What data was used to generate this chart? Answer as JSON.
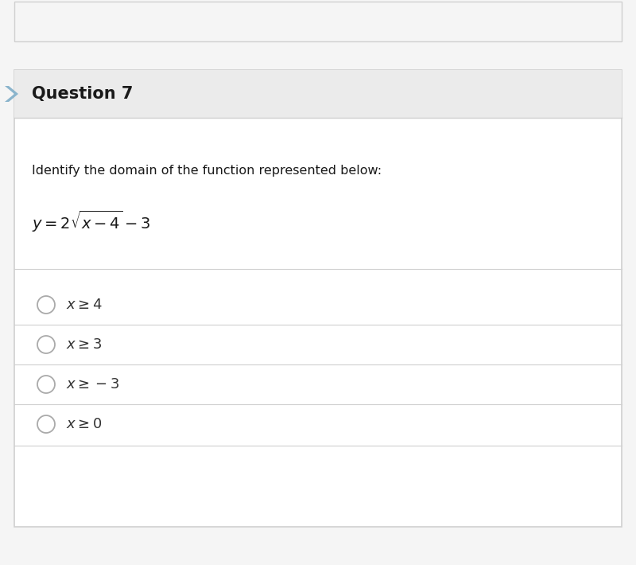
{
  "title": "Question 7",
  "question_text": "Identify the domain of the function represented below:",
  "function_latex": "$y = 2\\sqrt{x - 4} - 3$",
  "options": [
    "$x \\geq 4$",
    "$x \\geq 3$",
    "$x \\geq -3$",
    "$x \\geq 0$"
  ],
  "bg_color": "#f5f5f5",
  "card_bg_color": "#ffffff",
  "header_bg_color": "#ebebeb",
  "border_color": "#d0d0d0",
  "accent_color": "#8ab4cc",
  "text_color": "#1a1a1a",
  "option_text_color": "#333333",
  "circle_color": "#aaaaaa",
  "figsize": [
    8.0,
    7.1
  ],
  "dpi": 100
}
